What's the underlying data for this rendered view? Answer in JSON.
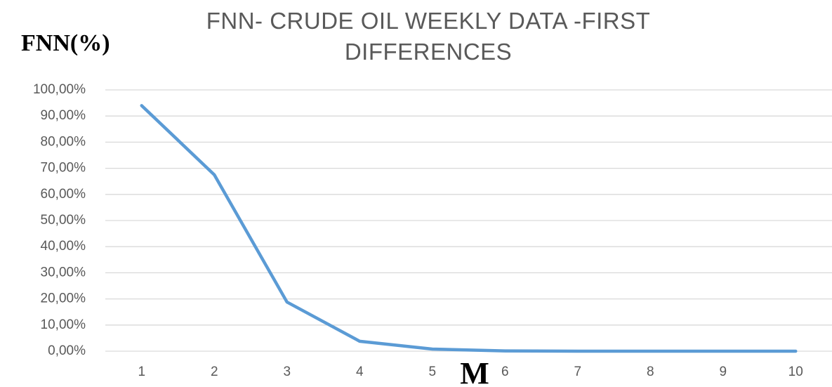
{
  "chart_data": {
    "type": "line",
    "title": "FNN- CRUDE OIL WEEKLY DATA -FIRST DIFFERENCES",
    "y_label": "FNN(%)",
    "x_label": "M",
    "categories": [
      "1",
      "2",
      "3",
      "4",
      "5",
      "6",
      "7",
      "8",
      "9",
      "10"
    ],
    "series": [
      {
        "name": "FNN",
        "color": "#5b9bd5",
        "values": [
          94,
          67.5,
          18.8,
          3.8,
          0.8,
          0.1,
          0,
          0,
          0,
          0
        ]
      }
    ],
    "ylim": [
      0,
      100
    ],
    "yticks": [
      {
        "value": 0,
        "label": "0,00%"
      },
      {
        "value": 10,
        "label": "10,00%"
      },
      {
        "value": 20,
        "label": "20,00%"
      },
      {
        "value": 30,
        "label": "30,00%"
      },
      {
        "value": 40,
        "label": "40,00%"
      },
      {
        "value": 50,
        "label": "50,00%"
      },
      {
        "value": 60,
        "label": "60,00%"
      },
      {
        "value": 70,
        "label": "70,00%"
      },
      {
        "value": 80,
        "label": "80,00%"
      },
      {
        "value": 90,
        "label": "90,00%"
      },
      {
        "value": 100,
        "label": "100,00%"
      }
    ],
    "grid": true
  }
}
